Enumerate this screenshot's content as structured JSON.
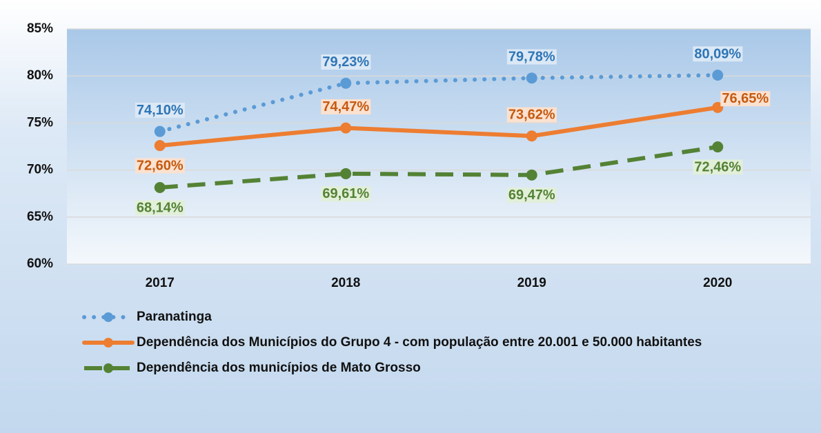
{
  "chart_data": {
    "type": "line",
    "categories": [
      "2017",
      "2018",
      "2019",
      "2020"
    ],
    "series": [
      {
        "name": "Paranatinga",
        "color": "#5b9bd5",
        "style": "dotted",
        "values": [
          74.1,
          79.23,
          79.78,
          80.09
        ],
        "value_labels": [
          "74,10%",
          "79,23%",
          "79,78%",
          "80,09%"
        ]
      },
      {
        "name": "Dependência dos Municípios do Grupo 4 - com população entre 20.001 e 50.000 habitantes",
        "color": "#ed7d31",
        "style": "solid",
        "values": [
          72.6,
          74.47,
          73.62,
          76.65
        ],
        "value_labels": [
          "72,60%",
          "74,47%",
          "73,62%",
          "76,65%"
        ]
      },
      {
        "name": "Dependência dos municípios de Mato Grosso",
        "color": "#548235",
        "style": "dashed",
        "values": [
          68.14,
          69.61,
          69.47,
          72.46
        ],
        "value_labels": [
          "68,14%",
          "69,61%",
          "69,47%",
          "72,46%"
        ]
      }
    ],
    "ylim": [
      60,
      85
    ],
    "yticks": [
      {
        "value": 60,
        "label": "60%"
      },
      {
        "value": 65,
        "label": "65%"
      },
      {
        "value": 70,
        "label": "70%"
      },
      {
        "value": 75,
        "label": "75%"
      },
      {
        "value": 80,
        "label": "80%"
      },
      {
        "value": 85,
        "label": "85%"
      }
    ],
    "grid": true,
    "legend": "bottom"
  }
}
